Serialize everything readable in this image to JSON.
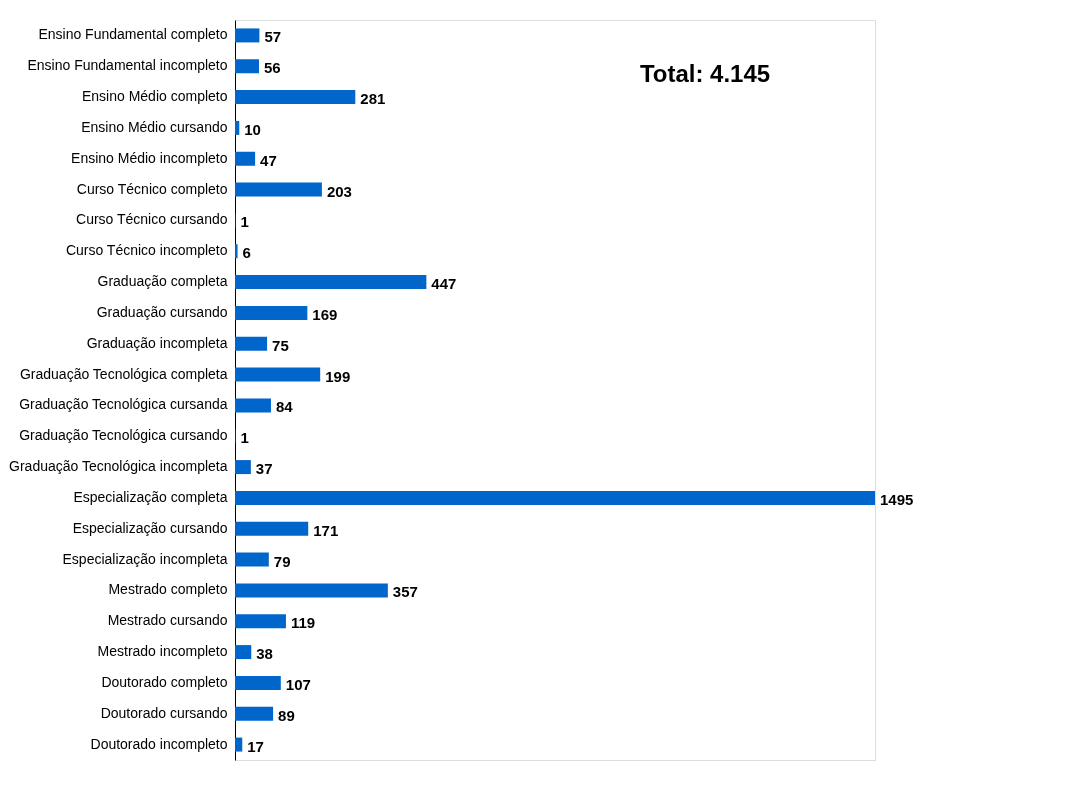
{
  "chart_data": {
    "type": "bar",
    "orientation": "horizontal",
    "data_labels": true,
    "color": "#0066cc",
    "categories": [
      "Ensino Fundamental completo",
      "Ensino Fundamental incompleto",
      "Ensino Médio completo",
      "Ensino Médio cursando",
      "Ensino Médio incompleto",
      "Curso Técnico completo",
      "Curso Técnico cursando",
      "Curso Técnico incompleto",
      "Graduação completa",
      "Graduação cursando",
      "Graduação incompleta",
      "Graduação Tecnológica completa",
      "Graduação Tecnológica cursanda",
      "Graduação Tecnológica cursando",
      "Graduação Tecnológica incompleta",
      "Especialização completa",
      "Especialização cursando",
      "Especialização incompleta",
      "Mestrado completo",
      "Mestrado cursando",
      "Mestrado incompleto",
      "Doutorado completo",
      "Doutorado cursando",
      "Doutorado incompleto"
    ],
    "values": [
      57,
      56,
      281,
      10,
      47,
      203,
      1,
      6,
      447,
      169,
      75,
      199,
      84,
      1,
      37,
      1495,
      171,
      79,
      357,
      119,
      38,
      107,
      89,
      17
    ],
    "annotations": [
      "Total: 4.145"
    ],
    "grid": false
  }
}
